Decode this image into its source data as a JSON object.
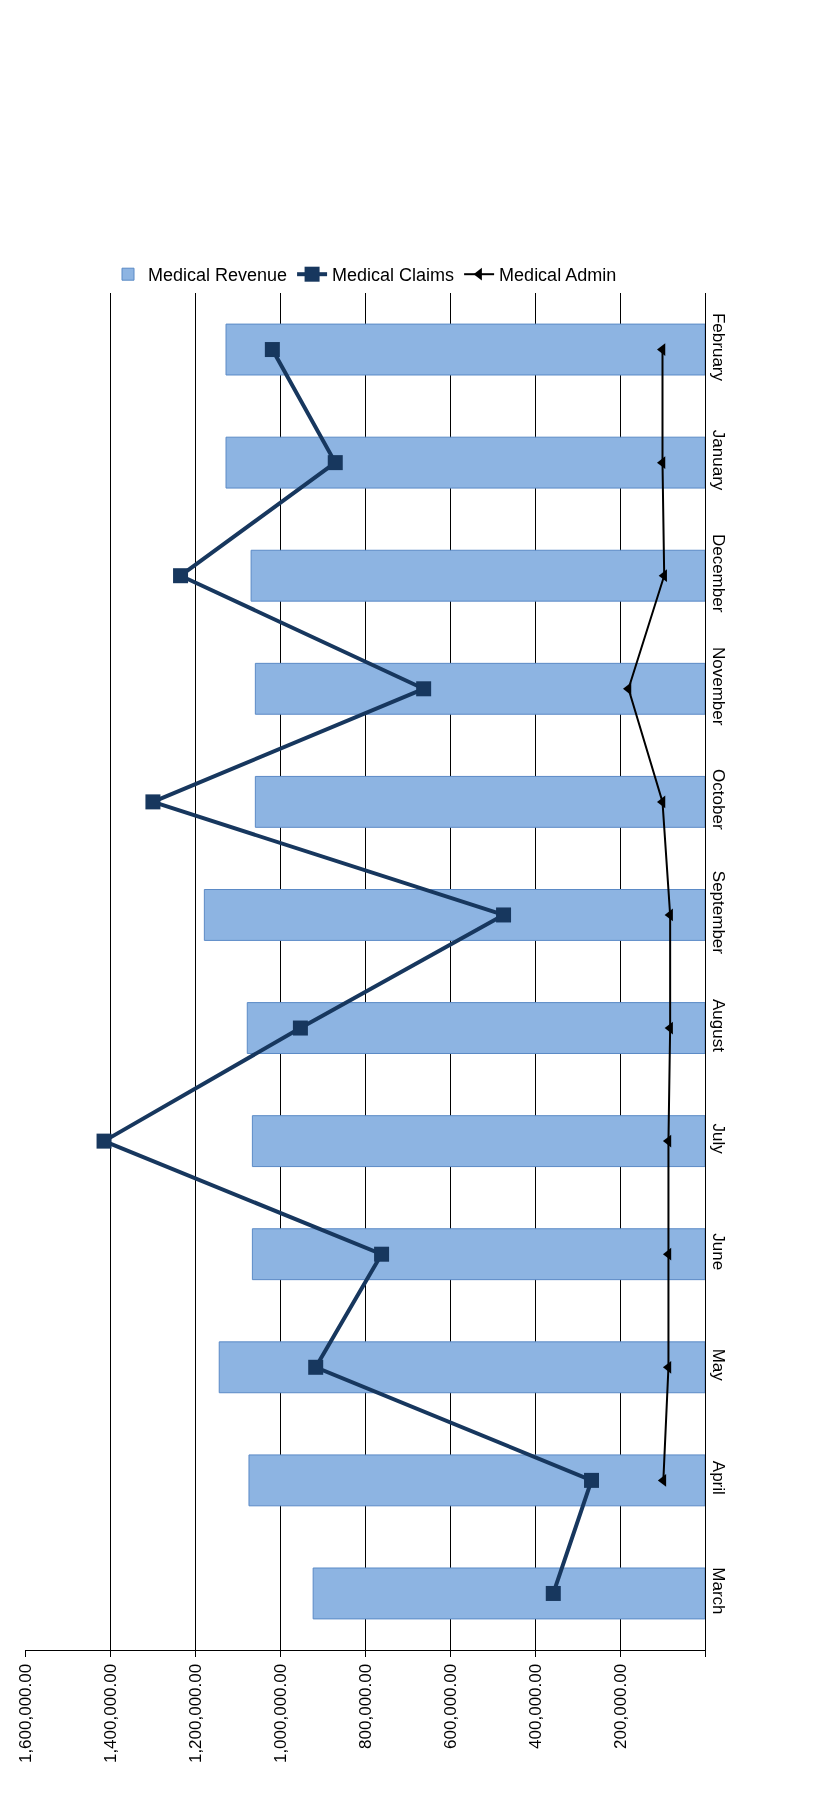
{
  "chart_data": {
    "type": "bar",
    "orientation": "horizontal",
    "categories": [
      "February",
      "January",
      "December",
      "November",
      "October",
      "September",
      "August",
      "July",
      "June",
      "May",
      "April",
      "March"
    ],
    "series": [
      {
        "name": "Medical Revenue",
        "color": "#8db4e2",
        "values": [
          1127000,
          1127000,
          1068000,
          1058000,
          1058000,
          1178000,
          1077000,
          1065000,
          1065000,
          1143000,
          1073000,
          922000
        ]
      },
      {
        "name": "Medical Claims",
        "type": "line",
        "color": "#17375e",
        "marker": "square",
        "values": [
          1018000,
          870000,
          1234000,
          662000,
          1299000,
          474000,
          952000,
          1414000,
          761000,
          916000,
          267000,
          357000
        ]
      },
      {
        "name": "Medical Admin",
        "type": "line",
        "color": "#000000",
        "marker": "triangle",
        "values": [
          100000,
          100000,
          96000,
          180000,
          100000,
          82000,
          82000,
          86000,
          86000,
          86000,
          98000,
          null
        ]
      }
    ],
    "xlim": [
      1600000,
      0
    ],
    "xticks": [
      {
        "value": 0,
        "label": null
      },
      {
        "value": 200000,
        "label": "200,000.00"
      },
      {
        "value": 400000,
        "label": "400,000.00"
      },
      {
        "value": 600000,
        "label": "600,000.00"
      },
      {
        "value": 800000,
        "label": "800,000.00"
      },
      {
        "value": 1000000,
        "label": "1,000,000.00"
      },
      {
        "value": 1200000,
        "label": "1,200,000.00"
      },
      {
        "value": 1400000,
        "label": "1,400,000.00"
      },
      {
        "value": 1600000,
        "label": "1,600,000.00"
      }
    ],
    "grid": "x",
    "legend": "top"
  }
}
